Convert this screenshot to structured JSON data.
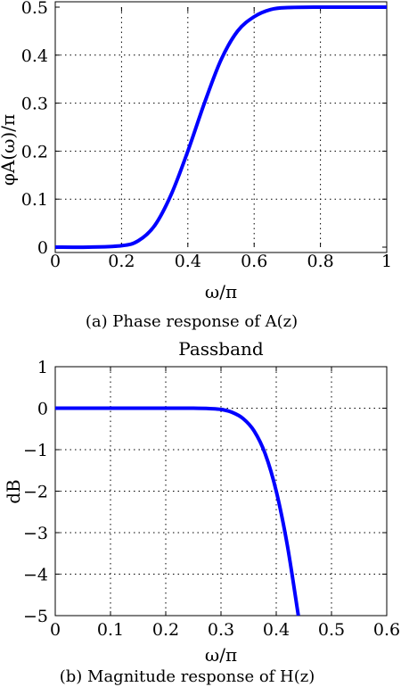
{
  "figure": {
    "caption_a": "(a) Phase response of A(z)",
    "caption_b": "(b) Magnitude response of H(z)"
  },
  "chart_data": [
    {
      "type": "line",
      "title": "",
      "xlabel": "ω/π",
      "ylabel": "φA(ω)/π",
      "xlim": [
        0,
        1
      ],
      "ylim": [
        0,
        0.5
      ],
      "xticks": [
        "0",
        "0.2",
        "0.4",
        "0.6",
        "0.8",
        "1"
      ],
      "yticks": [
        "0",
        "0.1",
        "0.2",
        "0.3",
        "0.4",
        "0.5"
      ],
      "grid": true,
      "series": [
        {
          "color": "#0000ff",
          "x": [
            0,
            0.1,
            0.2,
            0.25,
            0.3,
            0.35,
            0.4,
            0.45,
            0.5,
            0.55,
            0.6,
            0.65,
            0.7,
            0.8,
            0.9,
            1.0
          ],
          "y": [
            0,
            0,
            0.003,
            0.013,
            0.045,
            0.11,
            0.2,
            0.3,
            0.39,
            0.45,
            0.48,
            0.495,
            0.499,
            0.5,
            0.5,
            0.5
          ]
        }
      ]
    },
    {
      "type": "line",
      "title": "Passband",
      "xlabel": "ω/π",
      "ylabel": "dB",
      "xlim": [
        0,
        0.6
      ],
      "ylim": [
        -5,
        1
      ],
      "xticks": [
        "0",
        "0.1",
        "0.2",
        "0.3",
        "0.4",
        "0.5",
        "0.6"
      ],
      "yticks": [
        "1",
        "0",
        "−1",
        "−2",
        "−3",
        "−4",
        "−5"
      ],
      "grid": true,
      "series": [
        {
          "color": "#0000ff",
          "x": [
            0,
            0.1,
            0.2,
            0.25,
            0.28,
            0.3,
            0.32,
            0.34,
            0.36,
            0.38,
            0.4,
            0.42,
            0.44
          ],
          "y": [
            0,
            0,
            0,
            0,
            -0.01,
            -0.03,
            -0.1,
            -0.25,
            -0.55,
            -1.1,
            -2,
            -3.3,
            -5
          ]
        }
      ]
    }
  ]
}
